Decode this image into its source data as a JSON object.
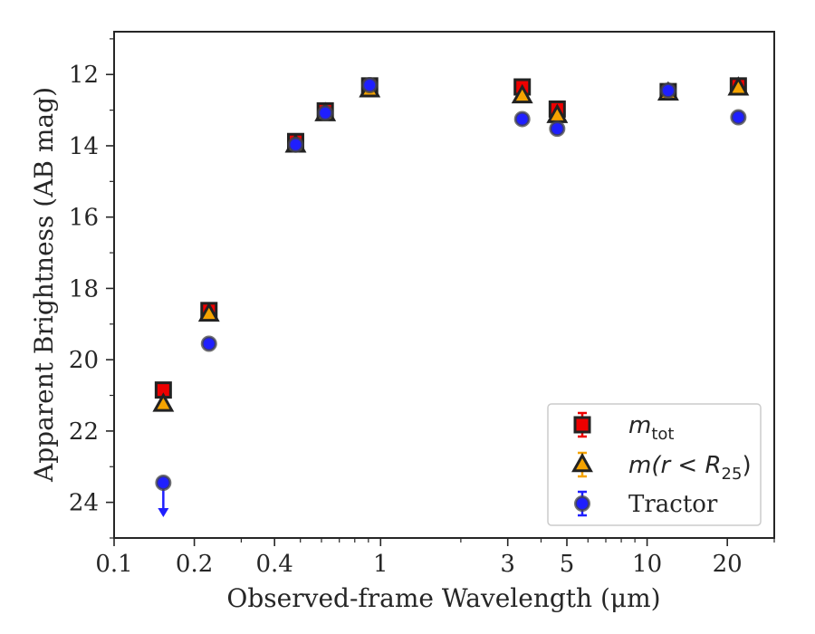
{
  "chart_data": {
    "type": "scatter",
    "xlabel": "Observed-frame Wavelength (μm)",
    "ylabel": "Apparent Brightness (AB mag)",
    "xscale": "log",
    "xlim": [
      0.1,
      30
    ],
    "ylim": [
      25,
      10.8
    ],
    "y_inverted": true,
    "xticks": [
      0.1,
      0.2,
      0.4,
      1,
      3,
      5,
      10,
      20
    ],
    "xtick_labels": [
      "0.1",
      "0.2",
      "0.4",
      "1",
      "3",
      "5",
      "10",
      "20"
    ],
    "yticks": [
      12,
      14,
      16,
      18,
      20,
      22,
      24
    ],
    "ytick_labels": [
      "12",
      "14",
      "16",
      "18",
      "20",
      "22",
      "24"
    ],
    "grid": false,
    "legend_position": "lower-right",
    "series": [
      {
        "name": "m_tot",
        "marker": "square",
        "color": "#ee0000",
        "points": [
          {
            "x": 0.153,
            "y": 20.85
          },
          {
            "x": 0.227,
            "y": 18.62
          },
          {
            "x": 0.48,
            "y": 13.88
          },
          {
            "x": 0.62,
            "y": 13.02
          },
          {
            "x": 0.91,
            "y": 12.32
          },
          {
            "x": 3.4,
            "y": 12.35
          },
          {
            "x": 4.6,
            "y": 12.97
          },
          {
            "x": 12.0,
            "y": 12.48
          },
          {
            "x": 22.0,
            "y": 12.32
          }
        ]
      },
      {
        "name": "m(r < R25)",
        "marker": "triangle",
        "color": "#f5a300",
        "points": [
          {
            "x": 0.153,
            "y": 21.25
          },
          {
            "x": 0.227,
            "y": 18.72
          },
          {
            "x": 0.48,
            "y": 13.98
          },
          {
            "x": 0.62,
            "y": 13.1
          },
          {
            "x": 0.91,
            "y": 12.43
          },
          {
            "x": 3.4,
            "y": 12.6
          },
          {
            "x": 4.6,
            "y": 13.15
          },
          {
            "x": 12.0,
            "y": 12.52
          },
          {
            "x": 22.0,
            "y": 12.38
          }
        ]
      },
      {
        "name": "Tractor",
        "marker": "circle",
        "color": "#1f1fff",
        "points": [
          {
            "x": 0.153,
            "y": 23.45,
            "upper_limit": true
          },
          {
            "x": 0.227,
            "y": 19.55
          },
          {
            "x": 0.48,
            "y": 13.97
          },
          {
            "x": 0.62,
            "y": 13.08
          },
          {
            "x": 0.91,
            "y": 12.3
          },
          {
            "x": 3.4,
            "y": 13.25
          },
          {
            "x": 4.6,
            "y": 13.52
          },
          {
            "x": 12.0,
            "y": 12.45
          },
          {
            "x": 22.0,
            "y": 13.2
          }
        ]
      }
    ],
    "legend": [
      {
        "label_main": "m",
        "label_sub": "tot",
        "label_rest": ""
      },
      {
        "label_main": "m(r < R",
        "label_sub": "25",
        "label_rest": ")"
      },
      {
        "label_main": "Tractor",
        "label_sub": "",
        "label_rest": ""
      }
    ]
  }
}
